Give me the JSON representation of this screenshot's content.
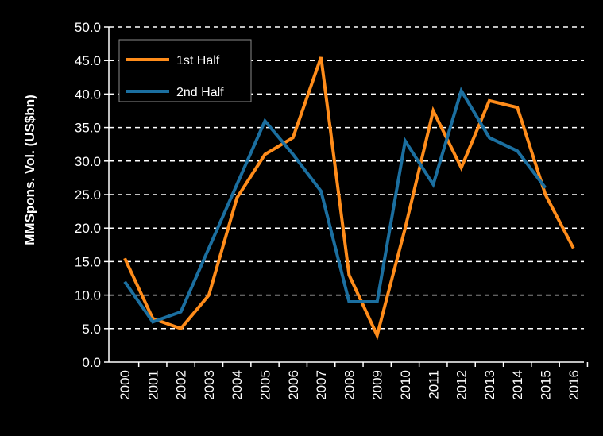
{
  "colors": {
    "background": "#000000",
    "axis": "#ffffff",
    "grid": "#ffffff",
    "series_1st": "#ff8c1a",
    "series_2nd": "#1b6fa0",
    "legend_border": "#8a8a8a"
  },
  "chart_data": {
    "type": "line",
    "title": "",
    "xlabel": "",
    "ylabel": "MMSpons. Vol. (US$bn)",
    "ylim": [
      0,
      50
    ],
    "yticks": [
      "0.0",
      "5.0",
      "10.0",
      "15.0",
      "20.0",
      "25.0",
      "30.0",
      "35.0",
      "40.0",
      "45.0",
      "50.0"
    ],
    "categories": [
      "2000",
      "2001",
      "2002",
      "2003",
      "2004",
      "2005",
      "2006",
      "2007",
      "2008",
      "2009",
      "2010",
      "2011",
      "2012",
      "2013",
      "2014",
      "2015",
      "2016"
    ],
    "grid": true,
    "grid_style": "dashed",
    "legend_position": "top-left",
    "series": [
      {
        "name": "1st Half",
        "color": "#ff8c1a",
        "values": [
          15.5,
          6.5,
          5.0,
          10.0,
          24.5,
          31.0,
          33.5,
          45.5,
          13.0,
          4.0,
          20.0,
          37.5,
          29.0,
          39.0,
          38.0,
          25.0,
          17.0
        ]
      },
      {
        "name": "2nd Half",
        "color": "#1b6fa0",
        "values": [
          12.0,
          6.0,
          7.5,
          17.0,
          26.5,
          36.0,
          31.0,
          25.5,
          9.0,
          9.0,
          33.0,
          26.5,
          40.5,
          33.5,
          31.5,
          26.0,
          null
        ]
      }
    ]
  }
}
